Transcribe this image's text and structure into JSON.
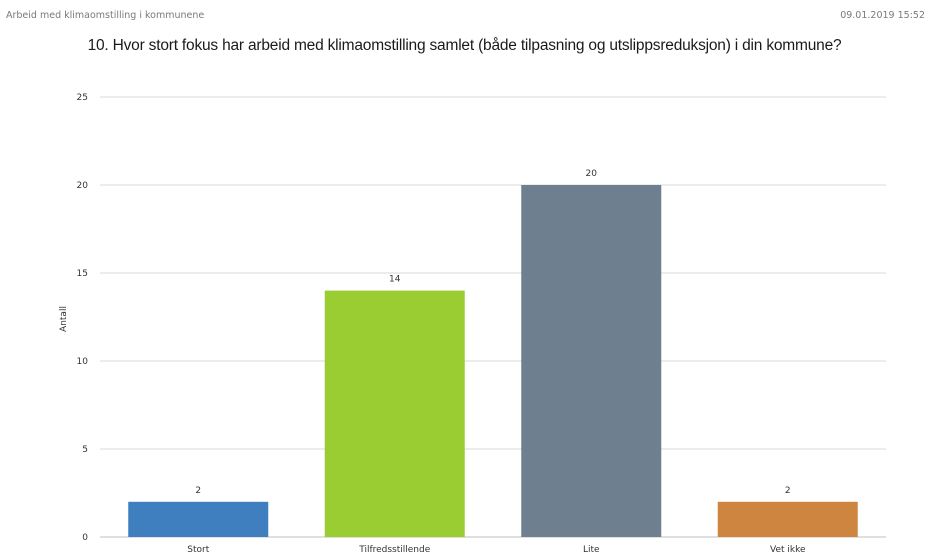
{
  "header": {
    "left_text": "Arbeid med klimaomstilling i kommunene",
    "right_text": "09.01.2019 15:52"
  },
  "chart_data": {
    "type": "bar",
    "title": "10. Hvor stort fokus har arbeid med klimaomstilling samlet (både tilpasning og utslippsreduksjon)  i din kommune?",
    "xlabel": "",
    "ylabel": "Antall",
    "categories": [
      "Stort",
      "Tilfredsstillende",
      "Lite",
      "Vet ikke"
    ],
    "values": [
      2,
      14,
      20,
      2
    ],
    "colors": [
      "#3f7fbf",
      "#9acd32",
      "#6e7f8f",
      "#cd853f"
    ],
    "ylim": [
      0,
      25
    ],
    "yticks": [
      0,
      5,
      10,
      15,
      20,
      25
    ],
    "grid": true,
    "data_labels": true
  }
}
